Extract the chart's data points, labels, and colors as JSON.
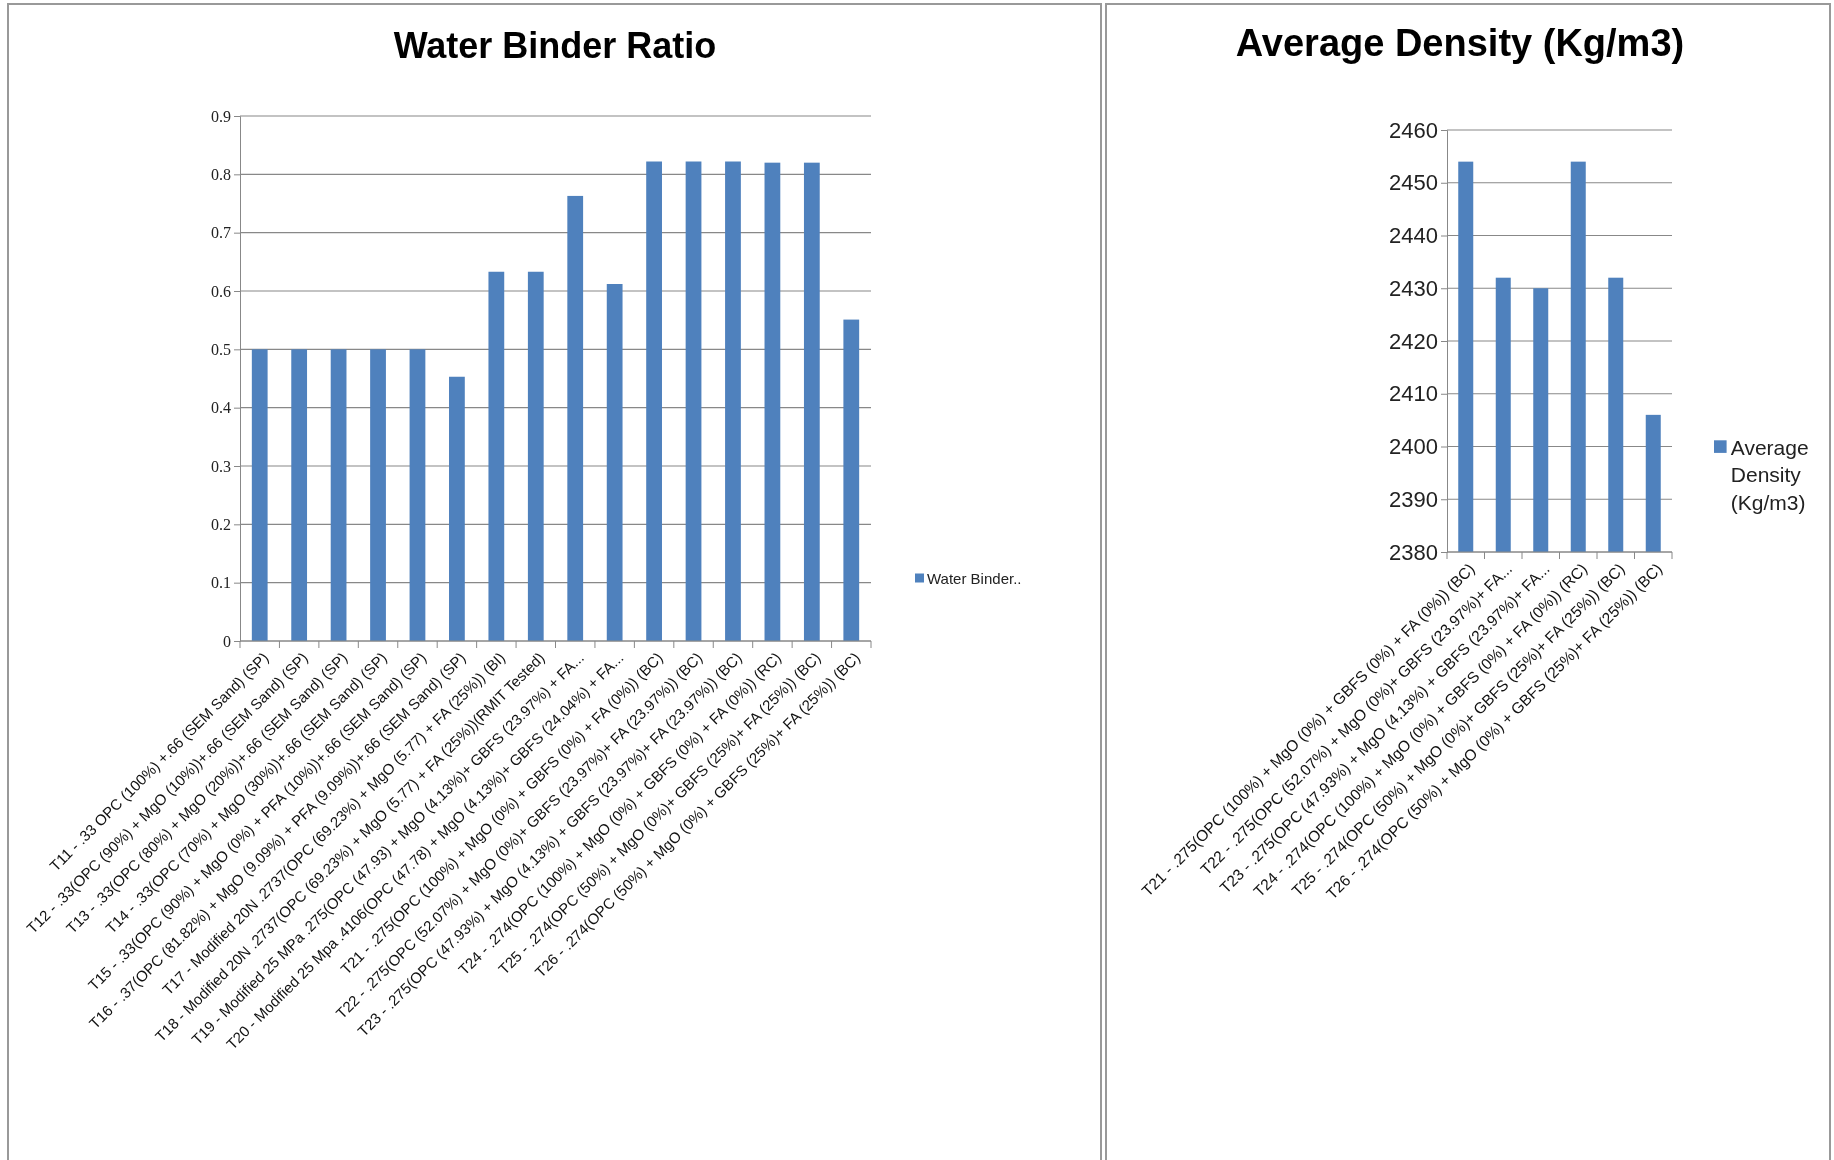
{
  "chart_data": [
    {
      "type": "bar",
      "title": "Water Binder Ratio",
      "categories": [
        "T11 - .33 OPC (100%) +.66 (SEM Sand) (SP)",
        "T12 - .33(OPC (90%) + MgO (10%))+.66 (SEM Sand) (SP)",
        "T13 - .33(OPC (80%) + MgO (20%))+.66 (SEM Sand) (SP)",
        "T14 - .33(OPC (70%) + MgO (30%))+.66 (SEM Sand) (SP)",
        "T15 - .33(OPC (90%) + MgO (0%) + PFA (10%))+.66 (SEM Sand) (SP)",
        "T16 - .37(OPC (81.82%) + MgO (9.09%) + PFA (9.09%))+.66 (SEM Sand) (SP)",
        "T17 - Modified 20N .2737(OPC (69.23%) + MgO (5.77) + FA (25%)) (BI)",
        "T18 - Modified 20N .2737(OPC (69.23%) + MgO (5.77) + FA (25%))(RMIT Tested)",
        "T19 - Modified 25 MPa .275(OPC (47.93) + MgO (4.13%)+ GBFS (23.97%) + FA...",
        "T20 - Modified 25 Mpa .4106(OPC (47.78) + MgO (4.13%)+ GBFS (24.04%) + FA...",
        "T21 - .275(OPC (100%) + MgO (0%) + GBFS (0%) + FA (0%)) (BC)",
        "T22 - .275(OPC (52.07%) + MgO (0%)+ GBFS (23.97%)+ FA (23.97%)) (BC)",
        "T23 - .275(OPC (47.93%) + MgO (4.13%) + GBFS (23.97%)+ FA (23.97%)) (BC)",
        "T24 - .274(OPC (100%) + MgO (0%) + GBFS (0%) + FA (0%)) (RC)",
        "T25 - .274(OPC (50%) + MgO (0%)+ GBFS (25%)+ FA (25%)) (BC)",
        "T26 - .274(OPC (50%) + MgO (0%) + GBFS (25%)+ FA (25%)) (BC)"
      ],
      "series": [
        {
          "name": "Water Binder..",
          "color": "#4f81bd",
          "values": [
            0.5,
            0.5,
            0.5,
            0.5,
            0.5,
            0.453,
            0.633,
            0.633,
            0.763,
            0.612,
            0.822,
            0.822,
            0.822,
            0.82,
            0.82,
            0.551
          ]
        }
      ],
      "ylim": [
        0,
        0.9
      ],
      "yticks": [
        0,
        0.1,
        0.2,
        0.3,
        0.4,
        0.5,
        0.6,
        0.7,
        0.8,
        0.9
      ],
      "grid": "y",
      "legend": "right"
    },
    {
      "type": "bar",
      "title": "Average Density (Kg/m3)",
      "categories": [
        "T21 - .275(OPC (100%) + MgO (0%) + GBFS (0%) + FA (0%)) (BC)",
        "T22 - .275(OPC (52.07%) + MgO (0%)+ GBFS (23.97%)+ FA...",
        "T23 - .275(OPC (47.93%) + MgO (4.13%) + GBFS (23.97%)+ FA...",
        "T24 - .274(OPC (100%) + MgO (0%) + GBFS (0%) + FA (0%)) (RC)",
        "T25 - .274(OPC (50%) + MgO (0%)+ GBFS (25%)+ FA (25%)) (BC)",
        "T26 - .274(OPC (50%) + MgO (0%) + GBFS (25%)+ FA (25%)) (BC)"
      ],
      "series": [
        {
          "name": "Average Density (Kg/m3)",
          "color": "#4f81bd",
          "values": [
            2454,
            2432,
            2430,
            2454,
            2432,
            2406
          ]
        }
      ],
      "ylim": [
        2380,
        2460
      ],
      "yticks": [
        2380,
        2390,
        2400,
        2410,
        2420,
        2430,
        2440,
        2450,
        2460
      ],
      "grid": "y",
      "legend": "right"
    }
  ]
}
